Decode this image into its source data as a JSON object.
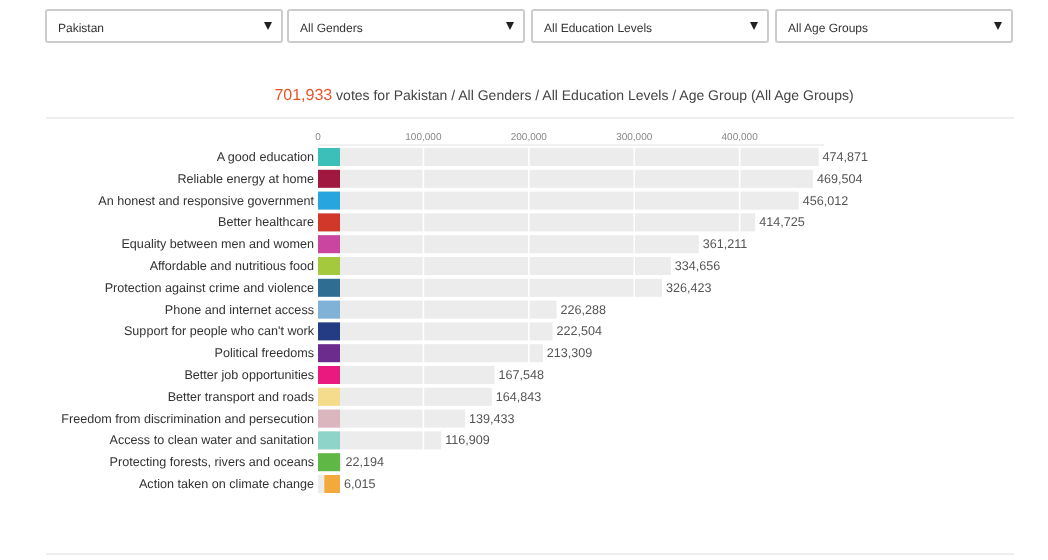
{
  "chart_data": {
    "type": "bar",
    "orientation": "horizontal",
    "title": "701,933 votes for Pakistan / All Genders / All Education Levels / Age Group (All Age Groups)",
    "annotations": [
      "Pakistan",
      "All Genders",
      "All Education Levels",
      "All Age Groups"
    ],
    "categories": [
      "A good education",
      "Reliable energy at home",
      "An honest and responsive government",
      "Better healthcare",
      "Equality between men and women",
      "Affordable and nutritious food",
      "Protection against crime and violence",
      "Phone and internet access",
      "Support for people who can't work",
      "Political freedoms",
      "Better job opportunities",
      "Better transport and roads",
      "Freedom from discrimination and persecution",
      "Access to clean water and sanitation",
      "Protecting forests, rivers and oceans",
      "Action taken on climate change"
    ],
    "values": [
      474871,
      469504,
      456012,
      414725,
      361211,
      334656,
      326423,
      226288,
      222504,
      213309,
      167548,
      164843,
      139433,
      116909,
      22194,
      6015
    ],
    "value_labels": [
      "474,871",
      "469,504",
      "456,012",
      "414,725",
      "361,211",
      "334,656",
      "326,423",
      "226,288",
      "222,504",
      "213,309",
      "167,548",
      "164,843",
      "139,433",
      "116,909",
      "22,194",
      "6,015"
    ],
    "color": "#ececec",
    "grid": "x",
    "xlim": [
      0,
      480000
    ],
    "xticks": [
      0,
      {
        "value": 100000,
        "label": "100,000"
      },
      {
        "value": 200000,
        "label": "200,000"
      },
      {
        "value": 300000,
        "label": "300,000"
      },
      {
        "value": 400000,
        "label": "400,000"
      }
    ]
  }
}
